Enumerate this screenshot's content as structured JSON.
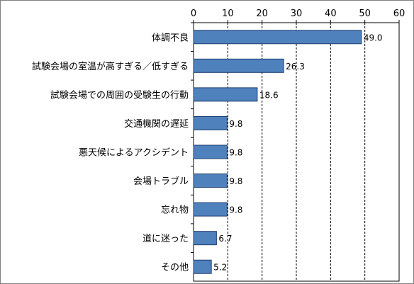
{
  "chart_data": {
    "type": "bar",
    "orientation": "horizontal",
    "categories": [
      "体調不良",
      "試験会場の室温が高すぎる／低すぎる",
      "試験会場での周囲の受験生の行動",
      "交通機関の遅延",
      "悪天候によるアクシデント",
      "会場トラブル",
      "忘れ物",
      "道に迷った",
      "その他"
    ],
    "values": [
      49.0,
      26.3,
      18.6,
      9.8,
      9.8,
      9.8,
      9.8,
      6.7,
      5.2
    ],
    "value_labels": [
      "49.0",
      "26.3",
      "18.6",
      "9.8",
      "9.8",
      "9.8",
      "9.8",
      "6.7",
      "5.2"
    ],
    "xlim": [
      0,
      60
    ],
    "xticks": [
      "0",
      "10",
      "20",
      "30",
      "40",
      "50",
      "60"
    ],
    "axis_position": "top",
    "grid": "vertical dashed",
    "bar_color": "#4f81bd",
    "bar_border_color": "#1f3f6e",
    "legend": "none"
  }
}
